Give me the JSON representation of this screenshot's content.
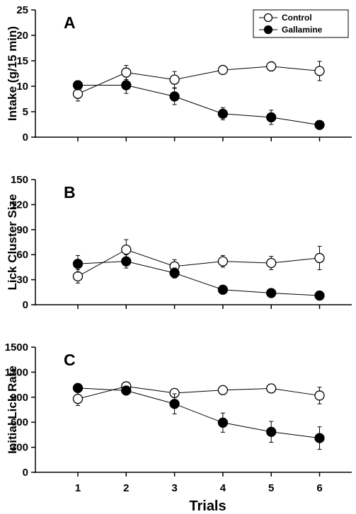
{
  "chart_data": [
    {
      "type": "line",
      "panel_label": "A",
      "ylabel": "Intake (g/15 min)",
      "xlabel": "",
      "x": [
        1,
        2,
        3,
        4,
        5,
        6
      ],
      "ylim": [
        0,
        25
      ],
      "yticks": [
        0,
        5,
        10,
        15,
        20,
        25
      ],
      "legend": {
        "placement": "top-right",
        "entries": [
          "Control",
          "Gallamine"
        ]
      },
      "series": [
        {
          "name": "Control",
          "marker": "open-circle",
          "values": [
            8.5,
            12.7,
            11.3,
            13.2,
            13.9,
            13.0
          ],
          "errors": [
            1.4,
            1.4,
            1.6,
            0.8,
            0.9,
            1.9
          ]
        },
        {
          "name": "Gallamine",
          "marker": "filled-circle",
          "values": [
            10.2,
            10.2,
            8.0,
            4.6,
            3.9,
            2.4
          ],
          "errors": [
            0.8,
            1.6,
            1.6,
            1.2,
            1.4,
            0.5
          ]
        }
      ]
    },
    {
      "type": "line",
      "panel_label": "B",
      "ylabel": "Lick Cluster Size",
      "xlabel": "",
      "x": [
        1,
        2,
        3,
        4,
        5,
        6
      ],
      "ylim": [
        0,
        150
      ],
      "yticks": [
        0,
        30,
        60,
        90,
        120,
        150
      ],
      "series": [
        {
          "name": "Control",
          "marker": "open-circle",
          "values": [
            34,
            66,
            46,
            52,
            50,
            56
          ],
          "errors": [
            8,
            12,
            8,
            7,
            8,
            14
          ]
        },
        {
          "name": "Gallamine",
          "marker": "filled-circle",
          "values": [
            49,
            52,
            38,
            18,
            14,
            11
          ],
          "errors": [
            10,
            8,
            6,
            3,
            3,
            2
          ]
        }
      ]
    },
    {
      "type": "line",
      "panel_label": "C",
      "ylabel": "Initial Lick Rate",
      "xlabel": "Trials",
      "x": [
        1,
        2,
        3,
        4,
        5,
        6
      ],
      "xticks": [
        "1",
        "2",
        "3",
        "4",
        "5",
        "6"
      ],
      "ylim": [
        0,
        1500
      ],
      "yticks": [
        0,
        300,
        600,
        900,
        1200,
        1500
      ],
      "series": [
        {
          "name": "Control",
          "marker": "open-circle",
          "values": [
            880,
            1030,
            950,
            985,
            1005,
            920
          ],
          "errors": [
            80,
            30,
            40,
            30,
            40,
            100
          ]
        },
        {
          "name": "Gallamine",
          "marker": "filled-circle",
          "values": [
            1010,
            980,
            820,
            595,
            485,
            410
          ],
          "errors": [
            40,
            40,
            120,
            115,
            125,
            135
          ]
        }
      ]
    }
  ]
}
